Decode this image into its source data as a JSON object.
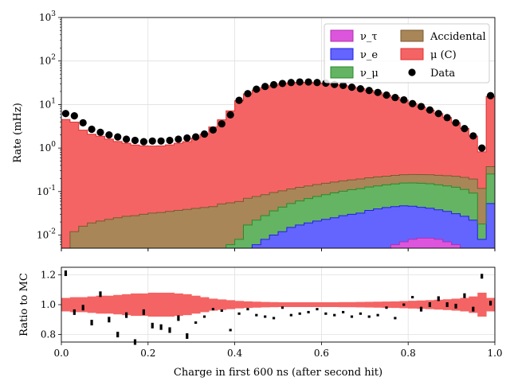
{
  "chart_data": [
    {
      "type": "area",
      "title": "",
      "xlabel": "Charge in first 600 ns (after second hit)",
      "ylabel": "Rate (mHz)",
      "yscale": "log",
      "xlim": [
        0,
        1
      ],
      "ylim": [
        0.005,
        1000
      ],
      "grid": true,
      "legend_position": "top-right",
      "stacked": true,
      "x_ticks": [
        "0.0",
        "0.2",
        "0.4",
        "0.6",
        "0.8",
        "1.0"
      ],
      "y_ticks": [
        "10-2",
        "10-1",
        "100",
        "101",
        "102",
        "103"
      ],
      "bin_edges": [
        0,
        0.02,
        0.04,
        0.06,
        0.08,
        0.1,
        0.12,
        0.14,
        0.16,
        0.18,
        0.2,
        0.22,
        0.24,
        0.26,
        0.28,
        0.3,
        0.32,
        0.34,
        0.36,
        0.38,
        0.4,
        0.42,
        0.44,
        0.46,
        0.48,
        0.5,
        0.52,
        0.54,
        0.56,
        0.58,
        0.6,
        0.62,
        0.64,
        0.66,
        0.68,
        0.7,
        0.72,
        0.74,
        0.76,
        0.78,
        0.8,
        0.82,
        0.84,
        0.86,
        0.88,
        0.9,
        0.92,
        0.94,
        0.96,
        0.98,
        1.0
      ],
      "series": [
        {
          "name": "ν_τ",
          "color": "#dd55dd",
          "values": [
            0,
            0,
            0,
            0,
            0,
            0,
            0,
            0,
            0,
            0,
            0,
            0,
            0,
            0,
            0,
            0,
            0,
            0,
            0,
            0,
            0,
            0,
            0,
            0,
            0,
            0,
            0,
            0,
            0,
            0,
            0,
            0,
            0,
            0,
            0,
            0.003,
            0.004,
            0.005,
            0.006,
            0.007,
            0.008,
            0.0085,
            0.0085,
            0.008,
            0.007,
            0.006,
            0.005,
            0.004,
            0,
            0.003
          ]
        },
        {
          "name": "ν_e",
          "color": "#6464ff",
          "values": [
            0,
            0,
            0,
            0,
            0,
            0,
            0,
            0,
            0,
            0,
            0,
            0,
            0,
            0,
            0,
            0,
            0,
            0,
            0,
            0,
            0,
            0.005,
            0.006,
            0.008,
            0.01,
            0.012,
            0.015,
            0.017,
            0.019,
            0.021,
            0.023,
            0.025,
            0.028,
            0.03,
            0.032,
            0.034,
            0.036,
            0.038,
            0.039,
            0.04,
            0.038,
            0.035,
            0.033,
            0.03,
            0.028,
            0.025,
            0.022,
            0.018,
            0.008,
            0.05
          ]
        },
        {
          "name": "ν_μ",
          "color": "#64b464",
          "values": [
            0,
            0,
            0,
            0,
            0,
            0,
            0,
            0,
            0,
            0,
            0,
            0,
            0,
            0,
            0,
            0,
            0,
            0,
            0.005,
            0.006,
            0.008,
            0.012,
            0.016,
            0.02,
            0.026,
            0.032,
            0.038,
            0.044,
            0.05,
            0.056,
            0.062,
            0.068,
            0.074,
            0.08,
            0.085,
            0.09,
            0.095,
            0.1,
            0.105,
            0.11,
            0.112,
            0.112,
            0.11,
            0.105,
            0.1,
            0.095,
            0.085,
            0.07,
            0.01,
            0.2
          ]
        },
        {
          "name": "Accidental",
          "color": "#a88658",
          "values": [
            0.005,
            0.012,
            0.016,
            0.019,
            0.021,
            0.023,
            0.025,
            0.027,
            0.028,
            0.03,
            0.032,
            0.033,
            0.035,
            0.037,
            0.039,
            0.041,
            0.043,
            0.045,
            0.047,
            0.049,
            0.051,
            0.053,
            0.055,
            0.057,
            0.059,
            0.06,
            0.062,
            0.064,
            0.066,
            0.068,
            0.07,
            0.072,
            0.074,
            0.076,
            0.078,
            0.08,
            0.082,
            0.083,
            0.085,
            0.087,
            0.089,
            0.09,
            0.092,
            0.094,
            0.096,
            0.098,
            0.1,
            0.102,
            0.1,
            0.12
          ]
        },
        {
          "name": "μ (C)",
          "color": "#f56464",
          "values": [
            4.52,
            3.94,
            2.56,
            2.06,
            1.85,
            1.58,
            1.39,
            1.26,
            1.15,
            1.09,
            1.08,
            1.09,
            1.15,
            1.25,
            1.36,
            1.66,
            2.06,
            3.0,
            4.4,
            7.1,
            12.2,
            17.5,
            21.4,
            24.7,
            27.6,
            30.1,
            31.2,
            32.3,
            32.0,
            30.9,
            30.0,
            28.6,
            27.4,
            25.3,
            23.1,
            20.8,
            18.4,
            16.1,
            14.4,
            12.4,
            10.3,
            8.6,
            7.2,
            5.95,
            4.8,
            3.6,
            2.6,
            1.7,
            0.7,
            15.0
          ]
        }
      ],
      "data_points": {
        "name": "Data",
        "color": "#000000",
        "x": [
          0.01,
          0.03,
          0.05,
          0.07,
          0.09,
          0.11,
          0.13,
          0.15,
          0.17,
          0.19,
          0.21,
          0.23,
          0.25,
          0.27,
          0.29,
          0.31,
          0.33,
          0.35,
          0.37,
          0.39,
          0.41,
          0.43,
          0.45,
          0.47,
          0.49,
          0.51,
          0.53,
          0.55,
          0.57,
          0.59,
          0.61,
          0.63,
          0.65,
          0.67,
          0.69,
          0.71,
          0.73,
          0.75,
          0.77,
          0.79,
          0.81,
          0.83,
          0.85,
          0.87,
          0.89,
          0.91,
          0.93,
          0.95,
          0.97,
          0.99
        ],
        "y": [
          6.2,
          5.5,
          3.8,
          2.7,
          2.3,
          2.0,
          1.8,
          1.6,
          1.5,
          1.4,
          1.45,
          1.45,
          1.5,
          1.6,
          1.7,
          1.8,
          2.1,
          2.6,
          3.6,
          5.8,
          12.5,
          17.8,
          22.5,
          26.0,
          28.5,
          30.5,
          32.0,
          33.0,
          33.0,
          32.0,
          31.0,
          29.0,
          27.5,
          25.0,
          23.0,
          21.0,
          19.0,
          16.5,
          14.5,
          12.8,
          10.5,
          9.0,
          7.5,
          6.2,
          5.0,
          3.8,
          2.8,
          1.9,
          1.0,
          16.0
        ]
      },
      "legend": {
        "columns": 2,
        "entries": [
          "ν_τ",
          "Accidental",
          "ν_e",
          "μ (C)",
          "ν_μ",
          "Data"
        ]
      }
    },
    {
      "type": "scatter",
      "title": "",
      "xlabel": "Charge in first 600 ns (after second hit)",
      "ylabel": "Ratio to MC",
      "xlim": [
        0,
        1
      ],
      "ylim": [
        0.75,
        1.25
      ],
      "grid": true,
      "x_ticks": [
        "0.0",
        "0.2",
        "0.4",
        "0.6",
        "0.8",
        "1.0"
      ],
      "y_ticks": [
        "0.8",
        "1.0",
        "1.2"
      ],
      "uncertainty_band_color": "#f56464",
      "band_halfwidth": [
        0.045,
        0.05,
        0.05,
        0.055,
        0.06,
        0.06,
        0.065,
        0.07,
        0.075,
        0.075,
        0.08,
        0.08,
        0.08,
        0.075,
        0.07,
        0.06,
        0.05,
        0.04,
        0.035,
        0.03,
        0.025,
        0.022,
        0.02,
        0.018,
        0.017,
        0.016,
        0.016,
        0.016,
        0.016,
        0.016,
        0.016,
        0.016,
        0.017,
        0.017,
        0.018,
        0.019,
        0.02,
        0.021,
        0.022,
        0.024,
        0.026,
        0.028,
        0.03,
        0.033,
        0.036,
        0.04,
        0.045,
        0.055,
        0.08,
        0.045
      ],
      "x": [
        0.01,
        0.03,
        0.05,
        0.07,
        0.09,
        0.11,
        0.13,
        0.15,
        0.17,
        0.19,
        0.21,
        0.23,
        0.25,
        0.27,
        0.29,
        0.31,
        0.33,
        0.35,
        0.37,
        0.39,
        0.41,
        0.43,
        0.45,
        0.47,
        0.49,
        0.51,
        0.53,
        0.55,
        0.57,
        0.59,
        0.61,
        0.63,
        0.65,
        0.67,
        0.69,
        0.71,
        0.73,
        0.75,
        0.77,
        0.79,
        0.81,
        0.83,
        0.85,
        0.87,
        0.89,
        0.91,
        0.93,
        0.95,
        0.97,
        0.99
      ],
      "y": [
        1.21,
        0.95,
        0.98,
        0.88,
        1.07,
        0.9,
        0.8,
        0.93,
        0.75,
        0.95,
        0.86,
        0.85,
        0.83,
        0.91,
        0.79,
        0.88,
        0.92,
        0.97,
        0.96,
        0.83,
        0.94,
        0.97,
        0.93,
        0.92,
        0.91,
        0.98,
        0.93,
        0.94,
        0.95,
        0.97,
        0.94,
        0.93,
        0.95,
        0.92,
        0.94,
        0.92,
        0.93,
        0.98,
        0.91,
        1.0,
        1.05,
        0.97,
        1.0,
        1.04,
        1.0,
        0.99,
        1.06,
        0.97,
        1.19,
        1.01
      ]
    }
  ]
}
